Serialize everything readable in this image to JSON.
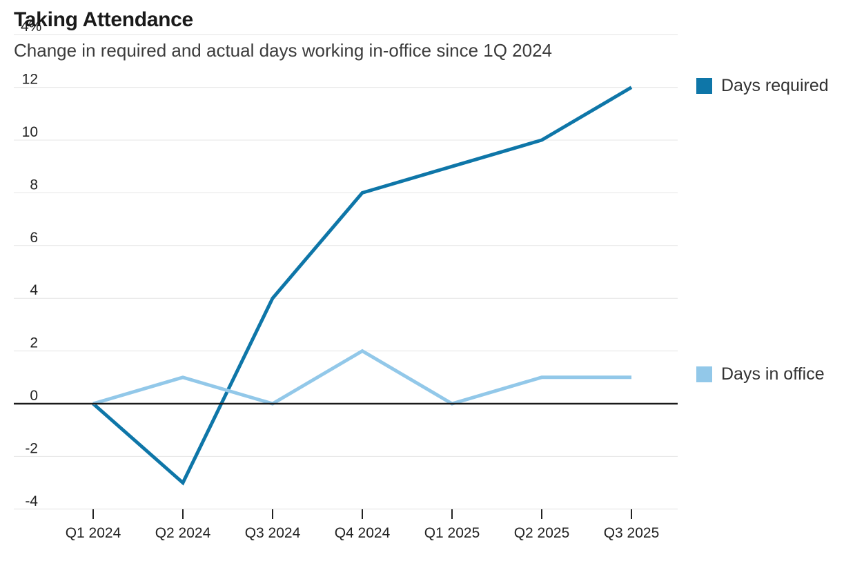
{
  "header": {
    "title": "Taking Attendance",
    "subtitle": "Change in required and actual days working in-office since 1Q 2024",
    "stray_axis_label": "4%"
  },
  "legend": {
    "items": [
      {
        "label": "Days required",
        "color": "#0e76a8"
      },
      {
        "label": "Days in office",
        "color": "#92c8e9"
      }
    ]
  },
  "chart_data": {
    "type": "line",
    "title": "Taking Attendance",
    "subtitle": "Change in required and actual days working in-office since 1Q 2024",
    "categories": [
      "Q1 2024",
      "Q2 2024",
      "Q3 2024",
      "Q4 2024",
      "Q1 2025",
      "Q2 2025",
      "Q3 2025"
    ],
    "series": [
      {
        "name": "Days required",
        "color": "#0e76a8",
        "values": [
          0,
          -3,
          4,
          8,
          9,
          10,
          12
        ]
      },
      {
        "name": "Days in office",
        "color": "#92c8e9",
        "values": [
          0,
          1,
          0,
          2,
          0,
          1,
          1
        ]
      }
    ],
    "xlabel": "",
    "ylabel": "",
    "ylim": [
      -4,
      14
    ],
    "yticks": [
      -4,
      -2,
      0,
      2,
      4,
      6,
      8,
      10,
      12
    ],
    "grid": true,
    "zero_line": true,
    "legend_position": "right",
    "colors": {
      "gridline": "#e4e4e4",
      "zero_line": "#1a1a1a",
      "tick": "#222222",
      "axis_text": "#222222"
    }
  }
}
